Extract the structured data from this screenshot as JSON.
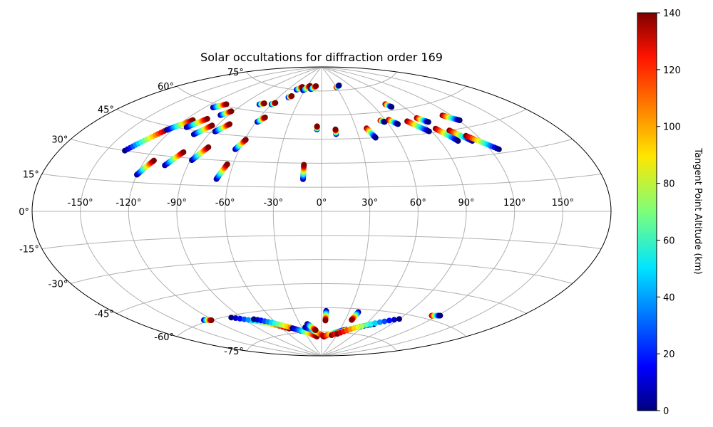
{
  "chart_data": {
    "type": "scatter",
    "projection": "Aitoff",
    "title": "Solar occultations for diffraction order 169",
    "xlabel": "",
    "ylabel": "",
    "x_ticks": [
      "-150°",
      "-120°",
      "-90°",
      "-60°",
      "-30°",
      "0°",
      "30°",
      "60°",
      "90°",
      "120°",
      "150°"
    ],
    "y_ticks": [
      "-75°",
      "-60°",
      "-45°",
      "-30°",
      "-15°",
      "0°",
      "15°",
      "30°",
      "45°",
      "60°",
      "75°"
    ],
    "x_range": [
      -180,
      180
    ],
    "y_range": [
      -90,
      90
    ],
    "grid": true,
    "colormap": "jet",
    "colorbar": {
      "label": "Tangent Point Altitude (km)",
      "range": [
        0,
        140
      ],
      "ticks": [
        "0",
        "20",
        "40",
        "60",
        "80",
        "100",
        "120",
        "140"
      ]
    },
    "series": [
      {
        "lon": -138,
        "lat": 30,
        "lon2": -124,
        "lat2": 43,
        "alt_start": 0,
        "alt_end": 140
      },
      {
        "lon": -120,
        "lat": 19,
        "lon2": -114,
        "lat2": 27,
        "alt_start": 0,
        "alt_end": 140
      },
      {
        "lon": -124,
        "lat": 43,
        "lon2": -114,
        "lat2": 50,
        "alt_start": 0,
        "alt_end": 140
      },
      {
        "lon": -105,
        "lat": 25,
        "lon2": -98,
        "lat2": 33,
        "alt_start": 0,
        "alt_end": 140
      },
      {
        "lon": -112,
        "lat": 46,
        "lon2": -104,
        "lat2": 52,
        "alt_start": 0,
        "alt_end": 140
      },
      {
        "lon": -101,
        "lat": 43,
        "lon2": -94,
        "lat2": 49,
        "alt_start": 0,
        "alt_end": 140
      },
      {
        "lon": -113,
        "lat": 58,
        "lon2": -106,
        "lat2": 61,
        "alt_start": 0,
        "alt_end": 140
      },
      {
        "lon": -89,
        "lat": 29,
        "lon2": -83,
        "lat2": 37,
        "alt_start": 0,
        "alt_end": 140
      },
      {
        "lon": -87,
        "lat": 46,
        "lon2": -81,
        "lat2": 51,
        "alt_start": 0,
        "alt_end": 140
      },
      {
        "lon": -68,
        "lat": 19,
        "lon2": -64,
        "lat2": 28,
        "alt_start": 0,
        "alt_end": 140
      },
      {
        "lon": -63,
        "lat": 37,
        "lon2": -59,
        "lat2": 43,
        "alt_start": 0,
        "alt_end": 140
      },
      {
        "lon": -59,
        "lat": 54,
        "lon2": -55,
        "lat2": 57,
        "alt_start": 0,
        "alt_end": 140
      },
      {
        "lon": -97,
        "lat": 55,
        "lon2": -92,
        "lat2": 58,
        "alt_start": 0,
        "alt_end": 140
      },
      {
        "lon": -73,
        "lat": 64,
        "lon2": -69,
        "lat2": 65,
        "alt_start": 0,
        "alt_end": 140
      },
      {
        "lon": -60,
        "lat": 65,
        "lon2": -57,
        "lat2": 66,
        "alt_start": 0,
        "alt_end": 140
      },
      {
        "lon": -47,
        "lat": 70,
        "lon2": -44,
        "lat2": 71,
        "alt_start": 0,
        "alt_end": 140
      },
      {
        "lon": -45,
        "lat": 75,
        "lon2": -39,
        "lat2": 77,
        "alt_start": 0,
        "alt_end": 140
      },
      {
        "lon": -33,
        "lat": 75,
        "lon2": -25,
        "lat2": 78,
        "alt_start": 0,
        "alt_end": 140
      },
      {
        "lon": -20,
        "lat": 76,
        "lon2": -12,
        "lat2": 78,
        "alt_start": 0,
        "alt_end": 140
      },
      {
        "lon": -12,
        "lat": 20,
        "lon2": -12,
        "lat2": 29,
        "alt_start": 0,
        "alt_end": 140
      },
      {
        "lon": -4,
        "lat": 51,
        "lon2": -4,
        "lat2": 53,
        "alt_start": 0,
        "alt_end": 140
      },
      {
        "lon": 12,
        "lat": 48,
        "lon2": 12,
        "lat2": 51,
        "alt_start": 0,
        "alt_end": 140
      },
      {
        "lon": 30,
        "lat": 77,
        "lon2": 38,
        "lat2": 78,
        "alt_start": 140,
        "alt_end": 0
      },
      {
        "lon": 39,
        "lat": 51,
        "lon2": 43,
        "lat2": 45,
        "alt_start": 140,
        "alt_end": 0
      },
      {
        "lon": 55,
        "lat": 55,
        "lon2": 58,
        "lat2": 54,
        "alt_start": 140,
        "alt_end": 0
      },
      {
        "lon": 63,
        "lat": 55,
        "lon2": 68,
        "lat2": 52,
        "alt_start": 140,
        "alt_end": 0
      },
      {
        "lon": 75,
        "lat": 64,
        "lon2": 78,
        "lat2": 62,
        "alt_start": 140,
        "alt_end": 0
      },
      {
        "lon": 78,
        "lat": 53,
        "lon2": 88,
        "lat2": 46,
        "alt_start": 140,
        "alt_end": 0
      },
      {
        "lon": 89,
        "lat": 54,
        "lon2": 95,
        "lat2": 51,
        "alt_start": 140,
        "alt_end": 0
      },
      {
        "lon": 95,
        "lat": 47,
        "lon2": 103,
        "lat2": 39,
        "alt_start": 140,
        "alt_end": 0
      },
      {
        "lon": 104,
        "lat": 45,
        "lon2": 113,
        "lat2": 38,
        "alt_start": 140,
        "alt_end": 0
      },
      {
        "lon": 112,
        "lat": 41,
        "lon2": 126,
        "lat2": 32,
        "alt_start": 140,
        "alt_end": 0
      },
      {
        "lon": 113,
        "lat": 53,
        "lon2": 121,
        "lat2": 49,
        "alt_start": 140,
        "alt_end": 0
      },
      {
        "lon": -128,
        "lat": -59,
        "lon2": -122,
        "lat2": -60,
        "alt_start": 0,
        "alt_end": 140
      },
      {
        "lon": -100,
        "lat": -61,
        "lon2": -50,
        "lat2": -72,
        "alt_start": 0,
        "alt_end": 140
      },
      {
        "lon": -80,
        "lat": -64,
        "lon2": -35,
        "lat2": -74,
        "alt_start": 0,
        "alt_end": 140
      },
      {
        "lon": -45,
        "lat": -72,
        "lon2": -10,
        "lat2": -78,
        "alt_start": 0,
        "alt_end": 140
      },
      {
        "lon": -25,
        "lat": -72,
        "lon2": 5,
        "lat2": -78,
        "alt_start": 0,
        "alt_end": 140
      },
      {
        "lon": 5,
        "lat": -78,
        "lon2": 40,
        "lat2": -73,
        "alt_start": 140,
        "alt_end": 0
      },
      {
        "lon": 20,
        "lat": -77,
        "lon2": 70,
        "lat2": -68,
        "alt_start": 140,
        "alt_end": 0
      },
      {
        "lon": 30,
        "lat": -76,
        "lon2": 90,
        "lat2": -63,
        "alt_start": 140,
        "alt_end": 0
      },
      {
        "lon": 115,
        "lat": -58,
        "lon2": 122,
        "lat2": -57,
        "alt_start": 140,
        "alt_end": 0
      },
      {
        "lon": 5,
        "lat": -62,
        "lon2": 5,
        "lat2": -68,
        "alt_start": 0,
        "alt_end": 140
      },
      {
        "lon": 40,
        "lat": -62,
        "lon2": 38,
        "lat2": -67,
        "alt_start": 0,
        "alt_end": 140
      },
      {
        "lon": -20,
        "lat": -70,
        "lon2": -10,
        "lat2": -74,
        "alt_start": 0,
        "alt_end": 140
      }
    ]
  }
}
